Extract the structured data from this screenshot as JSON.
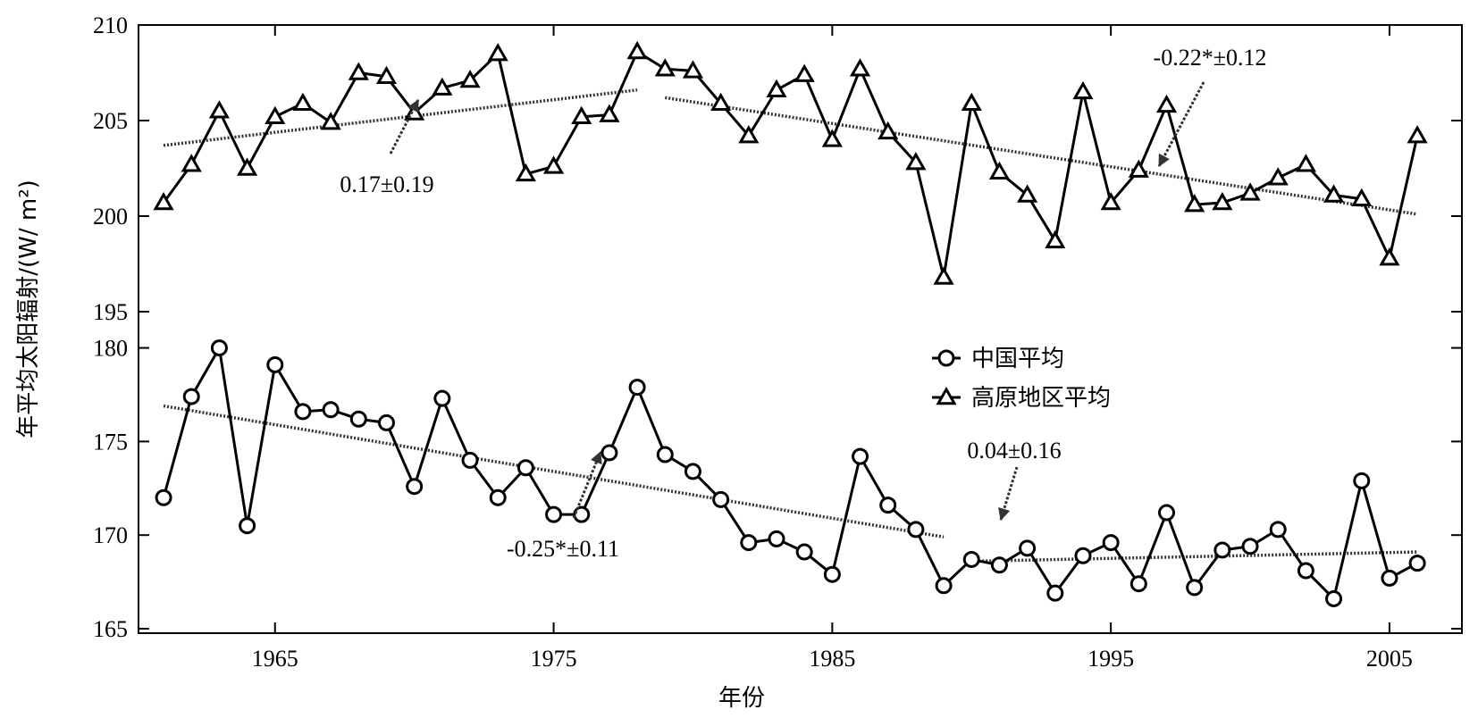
{
  "chart_data": {
    "type": "line",
    "xlabel": "年份",
    "ylabel": "年平均太阳辐射/(W/ m²)",
    "xlim": [
      1960.1,
      2007.6
    ],
    "x_ticks": [
      1965,
      1975,
      1985,
      1995,
      2005
    ],
    "x": [
      1961,
      1962,
      1963,
      1964,
      1965,
      1966,
      1967,
      1968,
      1969,
      1970,
      1971,
      1972,
      1973,
      1974,
      1975,
      1976,
      1977,
      1978,
      1979,
      1980,
      1981,
      1982,
      1983,
      1984,
      1985,
      1986,
      1987,
      1988,
      1989,
      1990,
      1991,
      1992,
      1993,
      1994,
      1995,
      1996,
      1997,
      1998,
      1999,
      2000,
      2001,
      2002,
      2003,
      2004,
      2005,
      2006
    ],
    "panels": [
      {
        "name": "upper",
        "ylim": [
          195,
          210
        ],
        "y_ticks": [
          195,
          200,
          205,
          210
        ],
        "series": [
          {
            "name": "高原地区平均",
            "marker": "triangle",
            "values": [
              200.7,
              202.7,
              205.5,
              202.5,
              205.2,
              205.9,
              204.9,
              207.5,
              207.3,
              205.4,
              206.7,
              207.1,
              208.5,
              202.2,
              202.6,
              205.2,
              205.3,
              208.6,
              207.7,
              207.6,
              205.9,
              204.2,
              206.6,
              207.4,
              204.0,
              207.7,
              204.4,
              202.8,
              196.8,
              205.9,
              202.3,
              201.1,
              198.7,
              206.5,
              200.7,
              202.4,
              205.8,
              200.6,
              200.7,
              201.2,
              202.0,
              202.7,
              201.1,
              200.9,
              197.8,
              204.2
            ]
          }
        ],
        "trends": [
          {
            "x": [
              1961,
              1978
            ],
            "y": [
              203.7,
              206.6
            ],
            "label": "0.17±0.19"
          },
          {
            "x": [
              1979,
              2006
            ],
            "y": [
              206.2,
              200.1
            ],
            "label": "-0.22*±0.12"
          }
        ]
      },
      {
        "name": "lower",
        "ylim": [
          165,
          180.6
        ],
        "y_ticks": [
          165,
          170,
          175,
          180
        ],
        "series": [
          {
            "name": "中国平均",
            "marker": "circle",
            "values": [
              172.0,
              177.4,
              180.0,
              170.5,
              179.1,
              176.6,
              176.7,
              176.2,
              176.0,
              172.6,
              177.3,
              174.0,
              172.0,
              173.6,
              171.1,
              171.1,
              174.4,
              177.9,
              174.3,
              173.4,
              171.9,
              169.6,
              169.8,
              169.1,
              167.9,
              174.2,
              171.6,
              170.3,
              167.3,
              168.7,
              168.4,
              169.3,
              166.9,
              168.9,
              169.6,
              167.4,
              171.2,
              167.2,
              169.2,
              169.4,
              170.3,
              168.1,
              166.6,
              172.9,
              167.7,
              168.5
            ]
          }
        ],
        "trends": [
          {
            "x": [
              1961,
              1989
            ],
            "y": [
              176.9,
              169.9
            ],
            "label": "-0.25*±0.11"
          },
          {
            "x": [
              1990,
              2006
            ],
            "y": [
              168.6,
              169.1
            ],
            "label": "0.04±0.16"
          }
        ]
      }
    ],
    "legend": {
      "placement": "center-right",
      "entries": [
        "中国平均",
        "高原地区平均"
      ]
    }
  }
}
